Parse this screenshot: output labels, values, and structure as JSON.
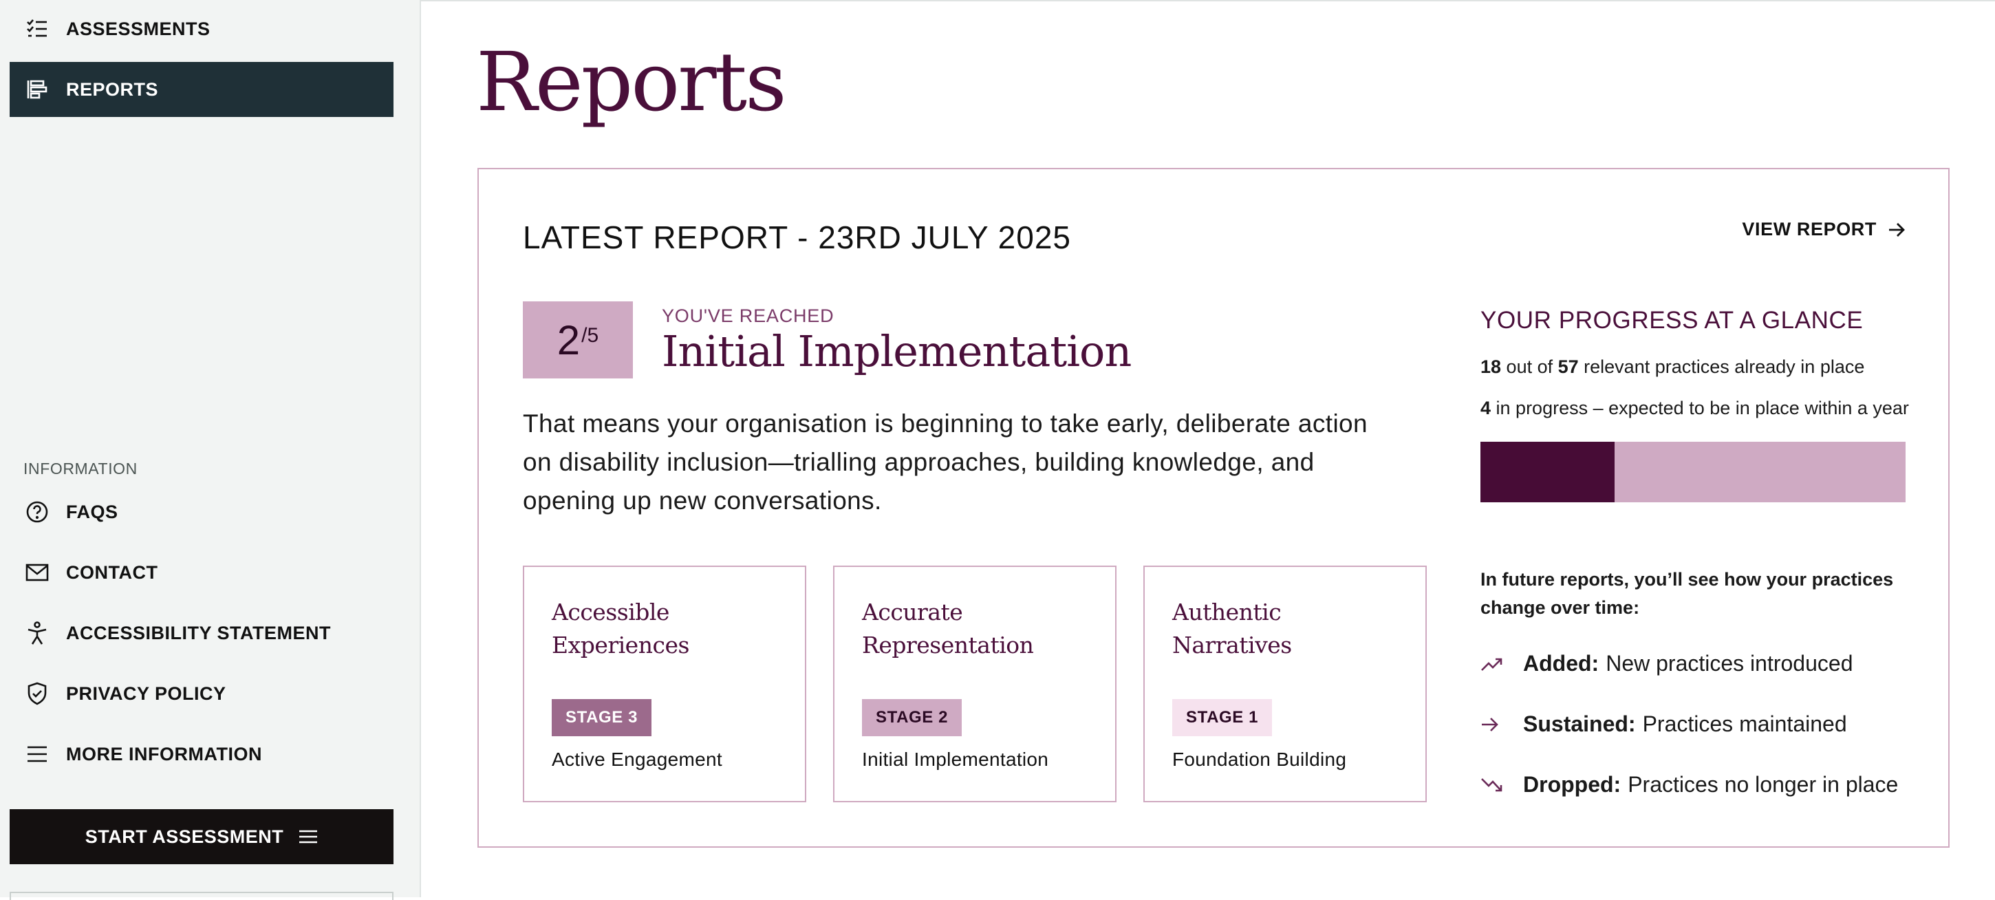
{
  "sidebar": {
    "nav": [
      {
        "label": "ASSESSMENTS",
        "icon": "checklist-icon"
      },
      {
        "label": "REPORTS",
        "icon": "report-bars-icon",
        "active": true
      }
    ],
    "info_label": "INFORMATION",
    "info_items": [
      {
        "label": "FAQS",
        "icon": "question-circle-icon"
      },
      {
        "label": "CONTACT",
        "icon": "envelope-icon"
      },
      {
        "label": "ACCESSIBILITY STATEMENT",
        "icon": "accessibility-person-icon"
      },
      {
        "label": "PRIVACY POLICY",
        "icon": "shield-check-icon"
      },
      {
        "label": "MORE INFORMATION",
        "icon": "menu-lines-icon"
      }
    ],
    "start_button": {
      "label": "START ASSESSMENT",
      "icon": "menu-lines-icon"
    }
  },
  "main": {
    "title": "Reports",
    "latest": {
      "title": "LATEST REPORT - 23RD JULY 2025",
      "view_report": "VIEW REPORT",
      "score": {
        "value": "2",
        "max": "/5"
      },
      "reached_label": "YOU'VE REACHED",
      "stage_name": "Initial Implementation",
      "description": "That means your organisation is beginning to take early, deliberate action on disability inclusion—trialling approaches, building knowledge, and opening up new conversations.",
      "cards": [
        {
          "title": "Accessible Experiences",
          "badge": "STAGE 3",
          "sub": "Active Engagement",
          "badge_bg": "#9c6a8c",
          "badge_fg": "#ffffff"
        },
        {
          "title": "Accurate Representation",
          "badge": "STAGE 2",
          "sub": "Initial Implementation",
          "badge_bg": "#cfaac3",
          "badge_fg": "#2b0a24"
        },
        {
          "title": "Authentic Narratives",
          "badge": "STAGE 1",
          "sub": "Foundation Building",
          "badge_bg": "#f6e2ee",
          "badge_fg": "#2b0a24"
        }
      ],
      "glance": {
        "title": "YOUR PROGRESS AT A GLANCE",
        "in_place_count": "18",
        "out_of_text": " out of ",
        "total": "57",
        "in_place_suffix": " relevant practices already in place",
        "in_progress_count": "4",
        "in_progress_suffix": " in progress – expected to be in place within a year",
        "progress_fraction": 0.3158,
        "bar_fill_color": "#470c36",
        "bar_track_color": "#cfaac3"
      },
      "future_text": "In future reports, you’ll see how your practices change over time:",
      "legend": [
        {
          "icon": "trend-up-icon",
          "label": "Added:",
          "text": "New practices introduced"
        },
        {
          "icon": "arrow-right-icon",
          "label": "Sustained:",
          "text": "Practices maintained"
        },
        {
          "icon": "trend-down-icon",
          "label": "Dropped:",
          "text": "Practices no longer in place"
        }
      ]
    }
  },
  "colors": {
    "accent": "#4a0f3a",
    "sidebar_active": "#1f3037",
    "card_border": "#cfa9c0"
  }
}
